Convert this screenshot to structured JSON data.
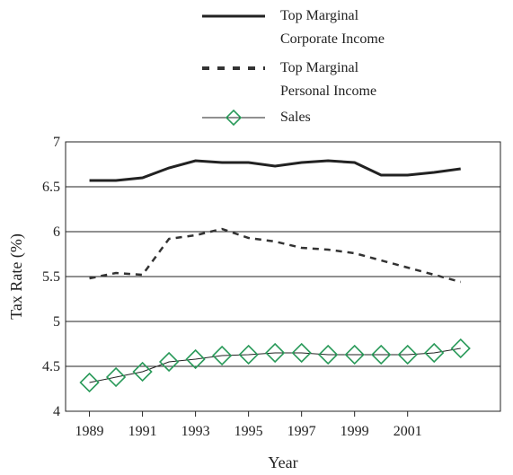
{
  "chart_data": {
    "type": "line",
    "x": [
      1989,
      1990,
      1991,
      1992,
      1993,
      1994,
      1995,
      1996,
      1997,
      1998,
      1999,
      2000,
      2001,
      2002,
      2003
    ],
    "series": [
      {
        "name": "Top Marginal Corporate Income",
        "color": "#222222",
        "style": "solid",
        "values": [
          6.57,
          6.57,
          6.6,
          6.71,
          6.79,
          6.77,
          6.77,
          6.73,
          6.77,
          6.79,
          6.77,
          6.63,
          6.63,
          6.66,
          6.7
        ]
      },
      {
        "name": "Top Marginal Personal Income",
        "color": "#333333",
        "style": "dashed",
        "values": [
          5.48,
          5.54,
          5.52,
          5.92,
          5.96,
          6.03,
          5.93,
          5.89,
          5.82,
          5.8,
          5.76,
          5.68,
          5.6,
          5.52,
          5.44
        ]
      },
      {
        "name": "Sales",
        "color": "#2a9a5a",
        "style": "marker",
        "values": [
          4.32,
          4.38,
          4.44,
          4.55,
          4.58,
          4.62,
          4.63,
          4.65,
          4.65,
          4.63,
          4.63,
          4.63,
          4.63,
          4.65,
          4.7
        ]
      }
    ],
    "xlabel": "Year",
    "ylabel": "Tax Rate (%)",
    "xlim": [
      1988.1,
      2004.5
    ],
    "xticks": [
      1989,
      1991,
      1993,
      1995,
      1997,
      1999,
      2001
    ],
    "ylim": [
      4,
      7
    ],
    "yticks": [
      4,
      4.5,
      5,
      5.5,
      6,
      6.5,
      7
    ],
    "grid": true
  }
}
